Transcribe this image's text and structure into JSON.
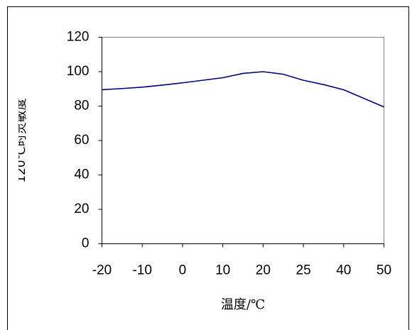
{
  "chart_data": {
    "type": "line",
    "x_label": "温度/℃",
    "y_label": "120℃时灵敏度",
    "categories": [
      "-20",
      null,
      "-10",
      null,
      "0",
      null,
      "10",
      null,
      "20",
      null,
      "25",
      null,
      "40",
      null,
      "50"
    ],
    "series": [
      {
        "color": "#000080",
        "values": [
          89.5,
          90.2,
          91,
          92.2,
          93.5,
          95,
          96.5,
          99,
          100,
          98.5,
          95,
          92.5,
          89.5,
          84.5,
          79.5
        ]
      }
    ],
    "ylim": [
      0,
      120
    ],
    "yticks": [
      0,
      20,
      40,
      60,
      80,
      100,
      120
    ]
  }
}
